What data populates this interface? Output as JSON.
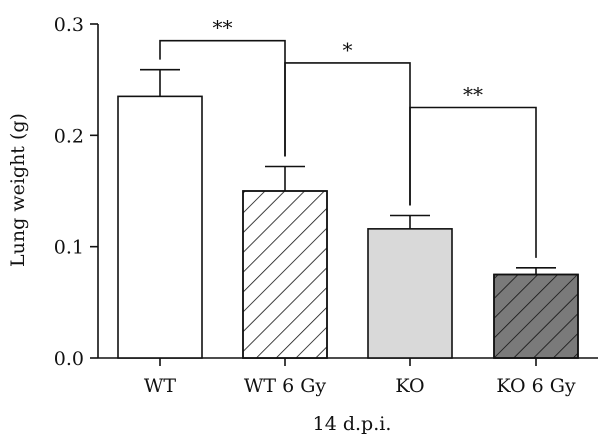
{
  "chart_data": {
    "type": "bar",
    "categories": [
      "WT",
      "WT 6 Gy",
      "KO",
      "KO 6 Gy"
    ],
    "values": [
      0.235,
      0.15,
      0.116,
      0.075
    ],
    "errors": [
      0.024,
      0.022,
      0.012,
      0.006
    ],
    "xlabel": "14 d.p.i.",
    "ylabel": "Lung weight (g)",
    "ylim": [
      0,
      0.3
    ],
    "yticks": [
      "0.0",
      "0.1",
      "0.2",
      "0.3"
    ],
    "grid": false,
    "bar_styles": [
      {
        "fill": "#ffffff",
        "hatch": false,
        "hatch_color": ""
      },
      {
        "fill": "#ffffff",
        "hatch": true,
        "hatch_color": "#111111"
      },
      {
        "fill": "#d9d9d9",
        "hatch": false,
        "hatch_color": ""
      },
      {
        "fill": "#7a7a7a",
        "hatch": true,
        "hatch_color": "#111111"
      }
    ],
    "significance": [
      {
        "from": 0,
        "to": 1,
        "label": "**",
        "y": 0.285
      },
      {
        "from": 1,
        "to": 2,
        "label": "*",
        "y": 0.265
      },
      {
        "from": 2,
        "to": 3,
        "label": "**",
        "y": 0.225
      }
    ]
  }
}
